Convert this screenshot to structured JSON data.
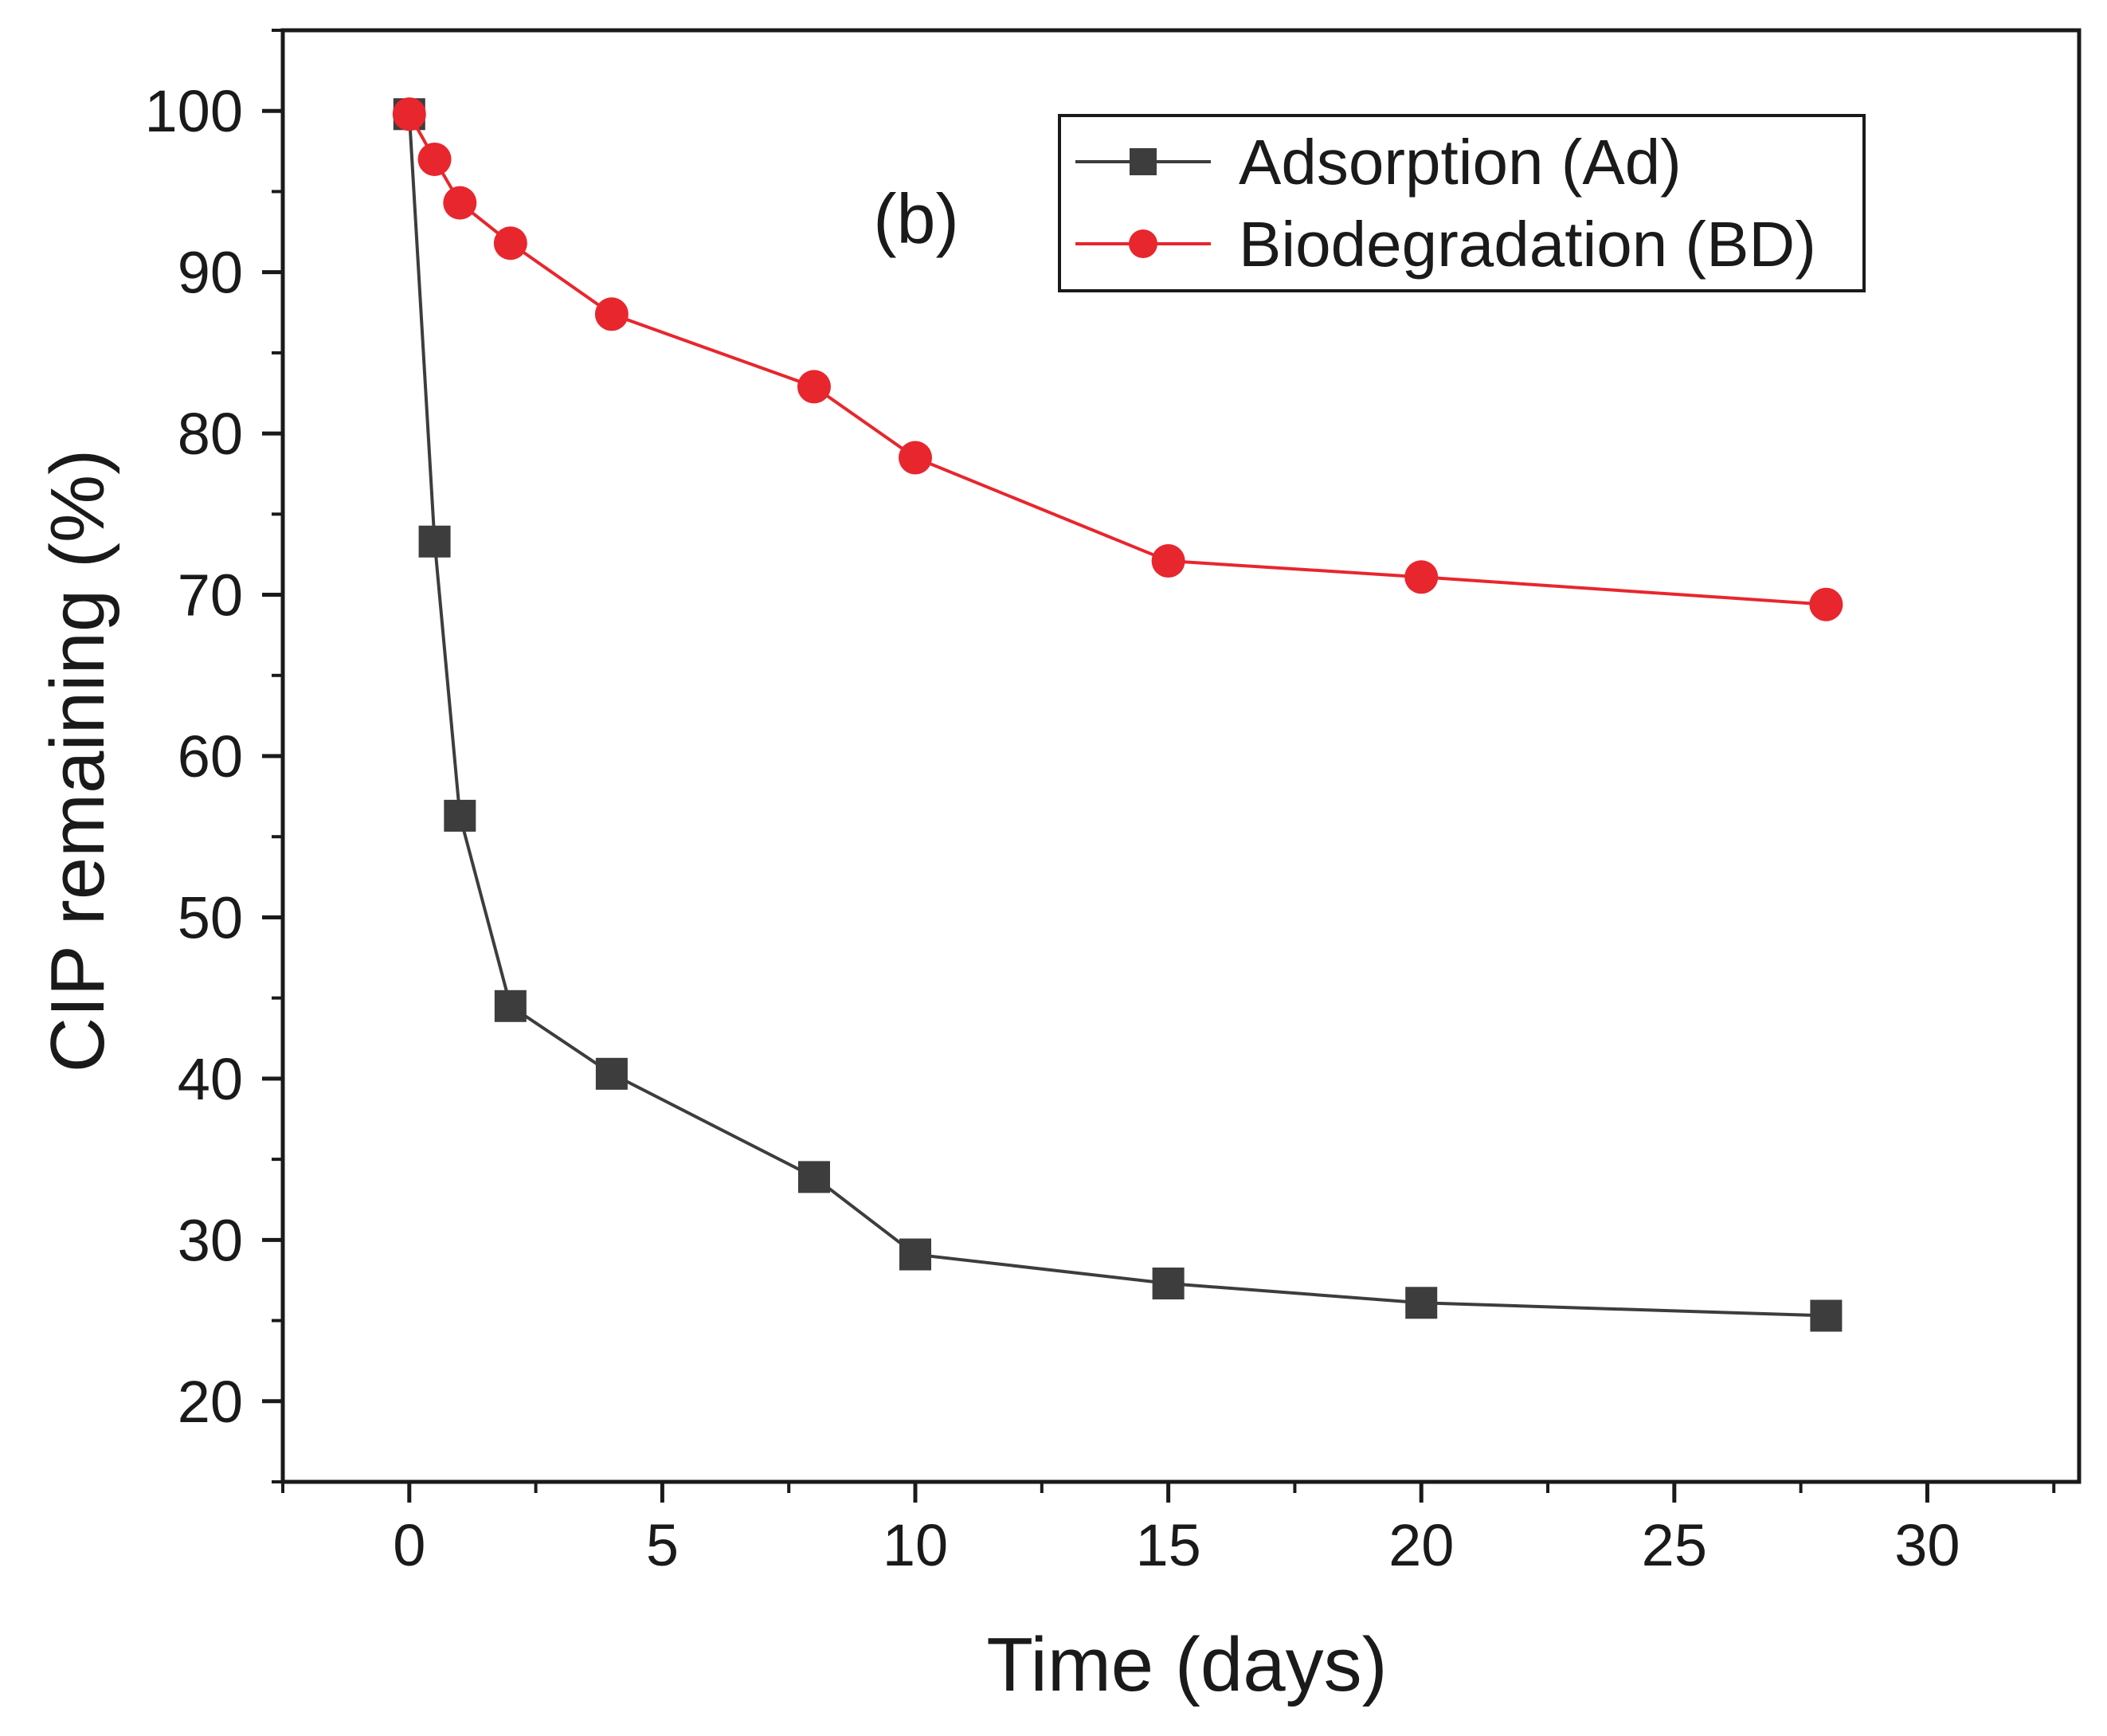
{
  "chart_data": {
    "type": "line",
    "title": "",
    "annotation": "(b)",
    "xlabel": "Time (days)",
    "ylabel": "CIP remaining (%)",
    "xlim": [
      -2.5,
      33
    ],
    "ylim": [
      15,
      105
    ],
    "xticks": [
      0,
      5,
      10,
      15,
      20,
      25,
      30
    ],
    "yticks": [
      20,
      30,
      40,
      50,
      60,
      70,
      80,
      90,
      100
    ],
    "xtick_labels": [
      "0",
      "5",
      "10",
      "15",
      "20",
      "25",
      "30"
    ],
    "ytick_labels": [
      "20",
      "30",
      "40",
      "50",
      "60",
      "70",
      "80",
      "90",
      "100"
    ],
    "grid": false,
    "legend_position": "top-right",
    "series": [
      {
        "name": "Adsorption (Ad)",
        "color": "#3d3d3d",
        "marker": "square",
        "x": [
          0,
          0.5,
          1,
          2,
          4,
          8,
          10,
          15,
          20,
          28
        ],
        "y": [
          99.8,
          73.3,
          56.3,
          44.5,
          40.3,
          33.9,
          29.1,
          27.3,
          26.1,
          25.3
        ]
      },
      {
        "name": "Biodegradation (BD)",
        "color": "#e8262d",
        "marker": "circle",
        "x": [
          0,
          0.5,
          1,
          2,
          4,
          8,
          10,
          15,
          20,
          28
        ],
        "y": [
          99.8,
          97.0,
          94.3,
          91.8,
          87.4,
          82.9,
          78.5,
          72.1,
          71.1,
          69.4
        ]
      }
    ]
  }
}
